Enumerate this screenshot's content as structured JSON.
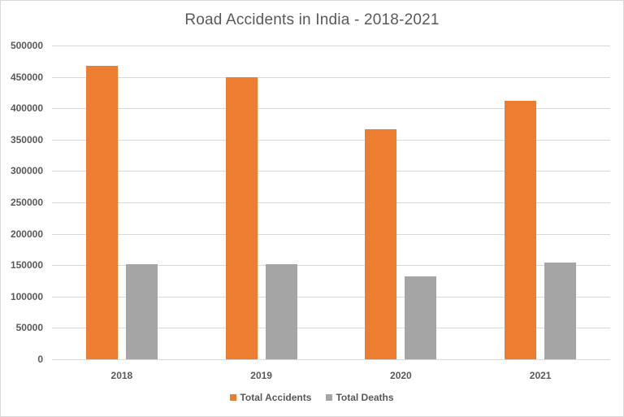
{
  "chart_data": {
    "type": "bar",
    "title": "Road Accidents in India - 2018-2021",
    "xlabel": "",
    "ylabel": "",
    "categories": [
      "2018",
      "2019",
      "2020",
      "2021"
    ],
    "series": [
      {
        "name": "Total Accidents",
        "color": "#ed7d31",
        "values": [
          467044,
          449002,
          366138,
          412432
        ]
      },
      {
        "name": "Total Deaths",
        "color": "#a5a5a5",
        "values": [
          151417,
          151113,
          131714,
          153972
        ]
      }
    ],
    "ylim": [
      0,
      500000
    ],
    "yticks": [
      "0",
      "50000",
      "100000",
      "150000",
      "200000",
      "250000",
      "300000",
      "350000",
      "400000",
      "450000",
      "500000"
    ],
    "grid": true,
    "legend_position": "bottom"
  },
  "legend": {
    "items": [
      {
        "label": "Total Accidents",
        "color": "#ed7d31"
      },
      {
        "label": "Total Deaths",
        "color": "#a5a5a5"
      }
    ]
  }
}
